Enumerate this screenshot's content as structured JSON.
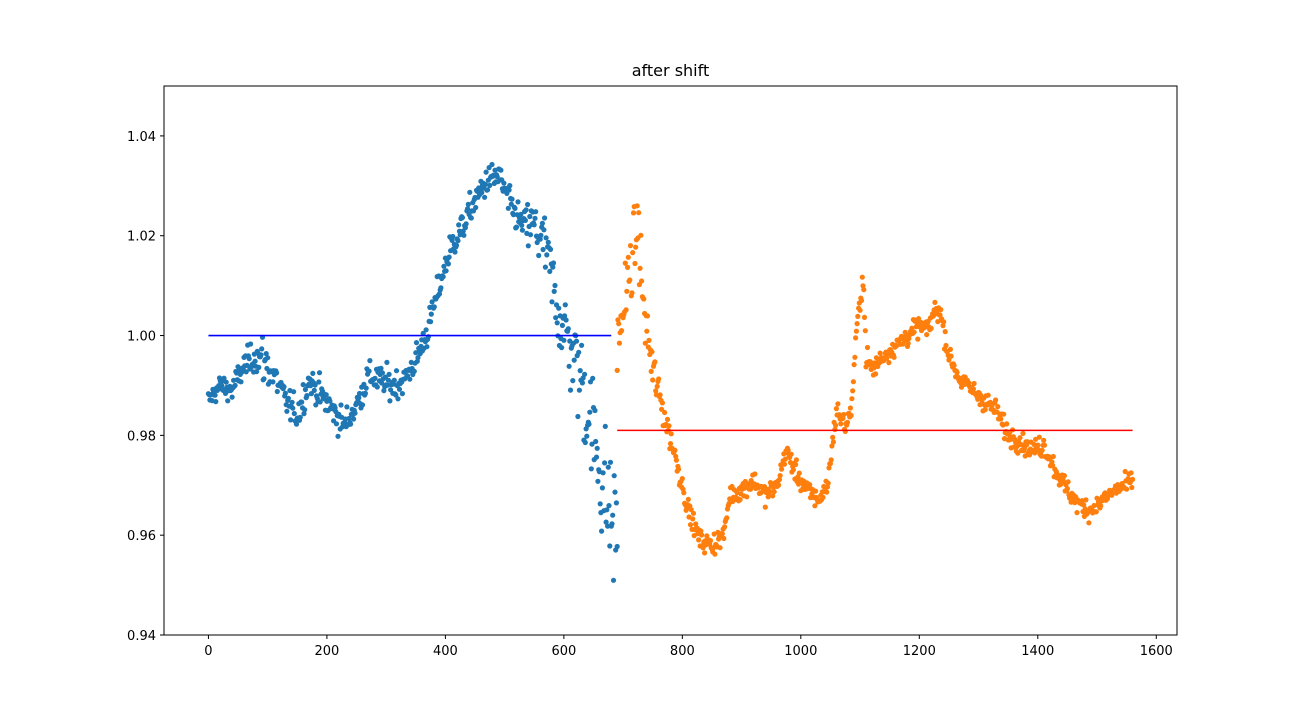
{
  "chart_data": {
    "type": "scatter",
    "title": "after shift",
    "xlabel": "",
    "ylabel": "",
    "xlim": [
      -75,
      1635
    ],
    "ylim": [
      0.94,
      1.05
    ],
    "xticks": [
      0,
      200,
      400,
      600,
      800,
      1000,
      1200,
      1400,
      1600
    ],
    "yticks": [
      0.94,
      0.96,
      0.98,
      1.0,
      1.02,
      1.04
    ],
    "xtick_labels": [
      "0",
      "200",
      "400",
      "600",
      "800",
      "1000",
      "1200",
      "1400",
      "1600"
    ],
    "ytick_labels": [
      "0.94",
      "0.96",
      "0.98",
      "1.00",
      "1.02",
      "1.04"
    ],
    "grid": false,
    "series": [
      {
        "color": "#1f77b4",
        "x_range": [
          0,
          690
        ],
        "trend": [
          [
            0,
            0.987
          ],
          [
            20,
            0.99
          ],
          [
            40,
            0.989
          ],
          [
            60,
            0.994
          ],
          [
            80,
            0.996
          ],
          [
            100,
            0.994
          ],
          [
            115,
            0.991
          ],
          [
            130,
            0.987
          ],
          [
            150,
            0.984
          ],
          [
            170,
            0.991
          ],
          [
            190,
            0.988
          ],
          [
            210,
            0.985
          ],
          [
            230,
            0.982
          ],
          [
            250,
            0.986
          ],
          [
            270,
            0.992
          ],
          [
            290,
            0.991
          ],
          [
            310,
            0.99
          ],
          [
            330,
            0.991
          ],
          [
            350,
            0.995
          ],
          [
            370,
            1.001
          ],
          [
            390,
            1.01
          ],
          [
            410,
            1.018
          ],
          [
            430,
            1.022
          ],
          [
            450,
            1.027
          ],
          [
            470,
            1.031
          ],
          [
            490,
            1.032
          ],
          [
            510,
            1.026
          ],
          [
            530,
            1.022
          ],
          [
            550,
            1.022
          ],
          [
            570,
            1.017
          ],
          [
            590,
            1.005
          ],
          [
            610,
            0.998
          ],
          [
            630,
            0.991
          ],
          [
            650,
            0.98
          ],
          [
            670,
            0.968
          ],
          [
            690,
            0.96
          ]
        ],
        "noise_profile": [
          [
            0,
            0.002
          ],
          [
            80,
            0.003
          ],
          [
            95,
            0.006
          ],
          [
            110,
            0.003
          ],
          [
            520,
            0.003
          ],
          [
            560,
            0.006
          ],
          [
            600,
            0.008
          ],
          [
            650,
            0.012
          ],
          [
            690,
            0.014
          ]
        ]
      },
      {
        "color": "#ff7f0e",
        "x_range": [
          690,
          1560
        ],
        "trend": [
          [
            690,
            0.998
          ],
          [
            700,
            1.005
          ],
          [
            715,
            1.015
          ],
          [
            725,
            1.022
          ],
          [
            735,
            1.005
          ],
          [
            750,
            0.993
          ],
          [
            765,
            0.986
          ],
          [
            790,
            0.975
          ],
          [
            810,
            0.965
          ],
          [
            830,
            0.959
          ],
          [
            850,
            0.958
          ],
          [
            870,
            0.96
          ],
          [
            880,
            0.968
          ],
          [
            900,
            0.969
          ],
          [
            920,
            0.971
          ],
          [
            940,
            0.968
          ],
          [
            960,
            0.97
          ],
          [
            975,
            0.977
          ],
          [
            990,
            0.973
          ],
          [
            1010,
            0.969
          ],
          [
            1030,
            0.967
          ],
          [
            1045,
            0.97
          ],
          [
            1060,
            0.985
          ],
          [
            1075,
            0.982
          ],
          [
            1085,
            0.985
          ],
          [
            1095,
            1.002
          ],
          [
            1105,
            1.012
          ],
          [
            1110,
            0.996
          ],
          [
            1120,
            0.993
          ],
          [
            1140,
            0.996
          ],
          [
            1160,
            0.998
          ],
          [
            1180,
            1.0
          ],
          [
            1200,
            1.002
          ],
          [
            1215,
            1.001
          ],
          [
            1225,
            1.005
          ],
          [
            1235,
            1.005
          ],
          [
            1250,
            0.996
          ],
          [
            1270,
            0.991
          ],
          [
            1290,
            0.989
          ],
          [
            1310,
            0.987
          ],
          [
            1330,
            0.985
          ],
          [
            1350,
            0.98
          ],
          [
            1370,
            0.979
          ],
          [
            1390,
            0.977
          ],
          [
            1410,
            0.978
          ],
          [
            1430,
            0.973
          ],
          [
            1450,
            0.969
          ],
          [
            1470,
            0.966
          ],
          [
            1490,
            0.965
          ],
          [
            1510,
            0.967
          ],
          [
            1530,
            0.969
          ],
          [
            1550,
            0.97
          ],
          [
            1560,
            0.971
          ]
        ],
        "noise_profile": [
          [
            690,
            0.008
          ],
          [
            760,
            0.004
          ],
          [
            800,
            0.002
          ],
          [
            1560,
            0.002
          ]
        ]
      }
    ],
    "reference_lines": [
      {
        "color": "#0000ff",
        "y": 1.0,
        "x": [
          0,
          680
        ]
      },
      {
        "color": "#ff0000",
        "y": 0.981,
        "x": [
          690,
          1560
        ]
      }
    ]
  }
}
